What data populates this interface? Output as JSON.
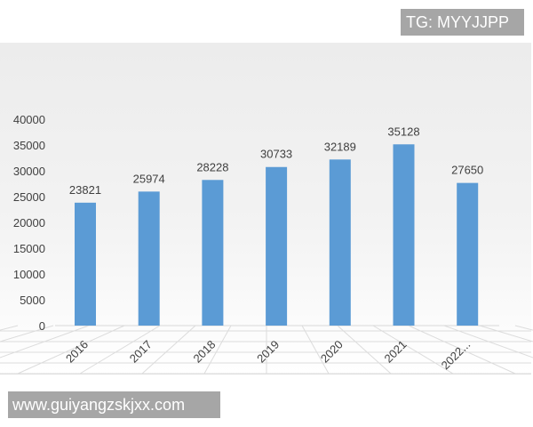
{
  "watermarks": {
    "tag": "TG: MYYJJPP",
    "site": "www.guiyangzskjxx.com"
  },
  "colors": {
    "bar": "#5b9bd5",
    "text": "#404040"
  },
  "chart_data": {
    "type": "bar",
    "categories": [
      "2016",
      "2017",
      "2018",
      "2019",
      "2020",
      "2021",
      "2022..."
    ],
    "values": [
      23821,
      25974,
      28228,
      30733,
      32189,
      35128,
      27650
    ],
    "yticks": [
      0,
      5000,
      10000,
      15000,
      20000,
      25000,
      30000,
      35000,
      40000
    ],
    "ylim": [
      0,
      40000
    ],
    "grid": false,
    "data_labels": true
  }
}
